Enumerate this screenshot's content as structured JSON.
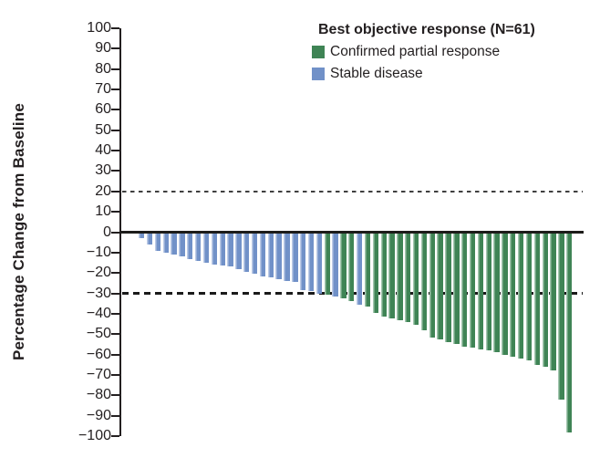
{
  "figure": {
    "background": "#ffffff",
    "text_color": "#231f20"
  },
  "chart_data": {
    "type": "bar",
    "subtype": "waterfall",
    "title": "",
    "xlabel": "",
    "ylabel": "Percentage Change from Baseline",
    "ylim": [
      -100,
      100
    ],
    "ytick_step": 10,
    "yticks": [
      100,
      90,
      80,
      70,
      60,
      50,
      40,
      30,
      20,
      10,
      0,
      -10,
      -20,
      -30,
      -40,
      -50,
      -60,
      -70,
      -80,
      -90,
      -100
    ],
    "grid": false,
    "reference_lines": [
      {
        "y": 20,
        "style": "dashed",
        "weight": "thin",
        "color": "#3f3f3f"
      },
      {
        "y": -30,
        "style": "dashed",
        "weight": "thick",
        "color": "#1a1a1a"
      }
    ],
    "legend": {
      "position": "top-right",
      "title": "Best objective response (N=61)",
      "items": [
        {
          "key": "PR",
          "label": "Confirmed partial response",
          "color": "#3F8455"
        },
        {
          "key": "SD",
          "label": "Stable disease",
          "color": "#7191C8"
        }
      ]
    },
    "colors": {
      "PR": "#3F8455",
      "PR_light": "#A3C6AF",
      "SD": "#7191C8",
      "SD_light": "#BDCBE6"
    },
    "bars": [
      {
        "patient": 1,
        "value": -3,
        "response": "SD"
      },
      {
        "patient": 2,
        "value": -6,
        "response": "SD"
      },
      {
        "patient": 3,
        "value": -9,
        "response": "SD"
      },
      {
        "patient": 4,
        "value": -10,
        "response": "SD"
      },
      {
        "patient": 5,
        "value": -11,
        "response": "SD"
      },
      {
        "patient": 6,
        "value": -12,
        "response": "SD"
      },
      {
        "patient": 7,
        "value": -13,
        "response": "SD"
      },
      {
        "patient": 8,
        "value": -14,
        "response": "SD"
      },
      {
        "patient": 9,
        "value": -15,
        "response": "SD"
      },
      {
        "patient": 10,
        "value": -16,
        "response": "SD"
      },
      {
        "patient": 11,
        "value": -16.5,
        "response": "SD"
      },
      {
        "patient": 12,
        "value": -17,
        "response": "SD"
      },
      {
        "patient": 13,
        "value": -18,
        "response": "SD"
      },
      {
        "patient": 14,
        "value": -19.5,
        "response": "SD"
      },
      {
        "patient": 15,
        "value": -20.5,
        "response": "SD"
      },
      {
        "patient": 16,
        "value": -21.5,
        "response": "SD"
      },
      {
        "patient": 17,
        "value": -22,
        "response": "SD"
      },
      {
        "patient": 18,
        "value": -23,
        "response": "SD"
      },
      {
        "patient": 19,
        "value": -24,
        "response": "SD"
      },
      {
        "patient": 20,
        "value": -24.5,
        "response": "SD"
      },
      {
        "patient": 21,
        "value": -28.5,
        "response": "SD"
      },
      {
        "patient": 22,
        "value": -29,
        "response": "SD"
      },
      {
        "patient": 23,
        "value": -30,
        "response": "SD"
      },
      {
        "patient": 24,
        "value": -30.5,
        "response": "PR"
      },
      {
        "patient": 25,
        "value": -31.5,
        "response": "SD"
      },
      {
        "patient": 26,
        "value": -32.5,
        "response": "PR"
      },
      {
        "patient": 27,
        "value": -34,
        "response": "PR"
      },
      {
        "patient": 28,
        "value": -35.5,
        "response": "SD"
      },
      {
        "patient": 29,
        "value": -36.5,
        "response": "PR"
      },
      {
        "patient": 30,
        "value": -39.5,
        "response": "PR"
      },
      {
        "patient": 31,
        "value": -41.5,
        "response": "PR"
      },
      {
        "patient": 32,
        "value": -42.5,
        "response": "PR"
      },
      {
        "patient": 33,
        "value": -43,
        "response": "PR"
      },
      {
        "patient": 34,
        "value": -44,
        "response": "PR"
      },
      {
        "patient": 35,
        "value": -45.5,
        "response": "PR"
      },
      {
        "patient": 36,
        "value": -48,
        "response": "PR"
      },
      {
        "patient": 37,
        "value": -51.5,
        "response": "PR"
      },
      {
        "patient": 38,
        "value": -52.5,
        "response": "PR"
      },
      {
        "patient": 39,
        "value": -54,
        "response": "PR"
      },
      {
        "patient": 40,
        "value": -55,
        "response": "PR"
      },
      {
        "patient": 41,
        "value": -56,
        "response": "PR"
      },
      {
        "patient": 42,
        "value": -56.5,
        "response": "PR"
      },
      {
        "patient": 43,
        "value": -57.5,
        "response": "PR"
      },
      {
        "patient": 44,
        "value": -58,
        "response": "PR"
      },
      {
        "patient": 45,
        "value": -59,
        "response": "PR"
      },
      {
        "patient": 46,
        "value": -60,
        "response": "PR"
      },
      {
        "patient": 47,
        "value": -61,
        "response": "PR"
      },
      {
        "patient": 48,
        "value": -62,
        "response": "PR"
      },
      {
        "patient": 49,
        "value": -63,
        "response": "PR"
      },
      {
        "patient": 50,
        "value": -65,
        "response": "PR"
      },
      {
        "patient": 51,
        "value": -66,
        "response": "PR"
      },
      {
        "patient": 52,
        "value": -68,
        "response": "PR"
      },
      {
        "patient": 53,
        "value": -82,
        "response": "PR"
      },
      {
        "patient": 54,
        "value": -98,
        "response": "PR"
      }
    ]
  }
}
